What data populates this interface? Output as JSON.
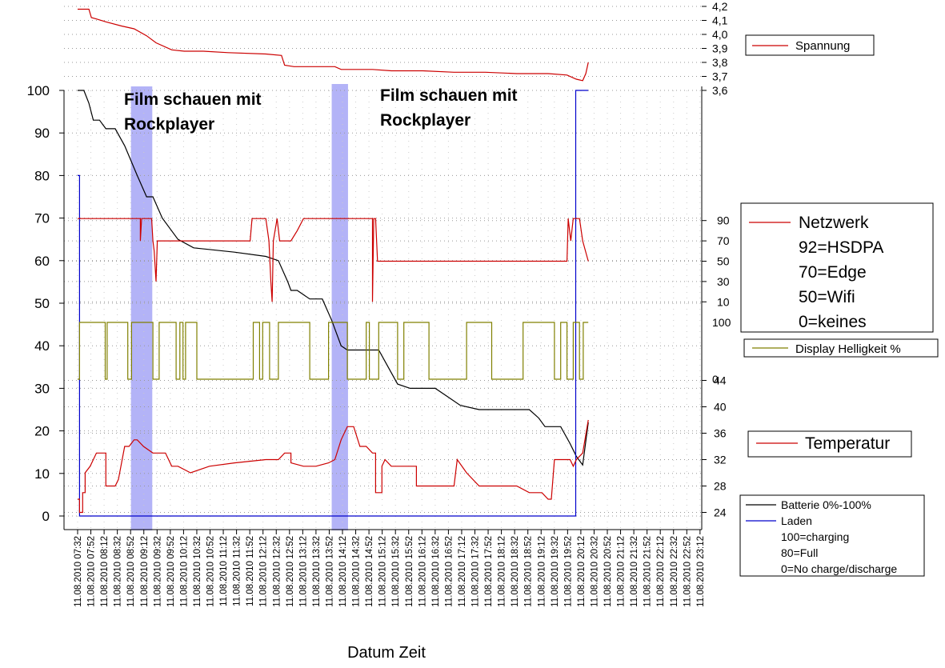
{
  "chart_data": {
    "type": "line",
    "xlabel": "Datum Zeit",
    "x_ticks": [
      "11.08.2010 07:32",
      "11.08.2010 07:52",
      "11.08.2010 08:12",
      "11.08.2010 08:32",
      "11.08.2010 08:52",
      "11.08.2010 09:12",
      "11.08.2010 09:32",
      "11.08.2010 09:52",
      "11.08.2010 10:12",
      "11.08.2010 10:32",
      "11.08.2010 10:52",
      "11.08.2010 11:12",
      "11.08.2010 11:32",
      "11.08.2010 11:52",
      "11.08.2010 12:12",
      "11.08.2010 12:32",
      "11.08.2010 12:52",
      "11.08.2010 13:12",
      "11.08.2010 13:32",
      "11.08.2010 13:52",
      "11.08.2010 14:12",
      "11.08.2010 14:32",
      "11.08.2010 14:52",
      "11.08.2010 15:12",
      "11.08.2010 15:32",
      "11.08.2010 15:52",
      "11.08.2010 16:12",
      "11.08.2010 16:32",
      "11.08.2010 16:52",
      "11.08.2010 17:12",
      "11.08.2010 17:32",
      "11.08.2010 17:52",
      "11.08.2010 18:12",
      "11.08.2010 18:32",
      "11.08.2010 18:52",
      "11.08.2010 19:12",
      "11.08.2010 19:32",
      "11.08.2010 19:52",
      "11.08.2010 20:12",
      "11.08.2010 20:32",
      "11.08.2010 20:52",
      "11.08.2010 21:12",
      "11.08.2010 21:32",
      "11.08.2010 21:52",
      "11.08.2010 22:12",
      "11.08.2010 22:32",
      "11.08.2010 22:52",
      "11.08.2010 23:12"
    ],
    "x_range_minutes_after_0732": [
      0,
      962
    ],
    "axes": {
      "main": {
        "ticks": [
          "0",
          "10",
          "20",
          "30",
          "40",
          "50",
          "60",
          "70",
          "80",
          "90",
          "100"
        ],
        "ylim": [
          0,
          100
        ]
      },
      "voltage": {
        "ticks": [
          "3,6",
          "3,7",
          "3,8",
          "3,9",
          "4,0",
          "4,1",
          "4,2"
        ],
        "ylim": [
          3.6,
          4.2
        ]
      },
      "network": {
        "ticks": [
          "10",
          "30",
          "50",
          "70",
          "90"
        ],
        "ylim": [
          0,
          100
        ]
      },
      "brightness": {
        "ticks": [
          "0",
          "100"
        ],
        "ylim": [
          0,
          100
        ]
      },
      "temperature": {
        "ticks": [
          "24",
          "28",
          "32",
          "36",
          "40",
          "44"
        ],
        "ylim": [
          22,
          46
        ]
      }
    },
    "annotations": [
      {
        "text": "Film schauen mit Rockplayer",
        "x_range": [
          85,
          119
        ]
      },
      {
        "text": "Film schauen mit Rockplayer",
        "x_range": [
          405,
          431
        ]
      }
    ],
    "series": [
      {
        "name": "Spannung",
        "color": "#cc0000",
        "axis": "voltage",
        "points": [
          [
            0,
            4.18
          ],
          [
            18,
            4.18
          ],
          [
            22,
            4.12
          ],
          [
            30,
            4.11
          ],
          [
            45,
            4.09
          ],
          [
            70,
            4.06
          ],
          [
            90,
            4.04
          ],
          [
            110,
            3.99
          ],
          [
            125,
            3.94
          ],
          [
            150,
            3.89
          ],
          [
            170,
            3.88
          ],
          [
            200,
            3.88
          ],
          [
            240,
            3.87
          ],
          [
            300,
            3.86
          ],
          [
            325,
            3.85
          ],
          [
            330,
            3.78
          ],
          [
            345,
            3.77
          ],
          [
            380,
            3.77
          ],
          [
            410,
            3.77
          ],
          [
            420,
            3.75
          ],
          [
            470,
            3.75
          ],
          [
            500,
            3.74
          ],
          [
            550,
            3.74
          ],
          [
            600,
            3.73
          ],
          [
            650,
            3.73
          ],
          [
            700,
            3.72
          ],
          [
            750,
            3.72
          ],
          [
            780,
            3.71
          ],
          [
            795,
            3.68
          ],
          [
            805,
            3.67
          ],
          [
            810,
            3.72
          ],
          [
            814,
            3.8
          ]
        ]
      },
      {
        "name": "Batterie 0%-100%",
        "color": "#000000",
        "axis": "main",
        "points": [
          [
            0,
            100
          ],
          [
            10,
            100
          ],
          [
            18,
            97
          ],
          [
            25,
            93
          ],
          [
            35,
            93
          ],
          [
            45,
            91
          ],
          [
            60,
            91
          ],
          [
            75,
            87
          ],
          [
            95,
            80
          ],
          [
            110,
            75
          ],
          [
            120,
            75
          ],
          [
            135,
            70
          ],
          [
            160,
            65
          ],
          [
            185,
            63
          ],
          [
            250,
            62
          ],
          [
            300,
            61
          ],
          [
            320,
            60
          ],
          [
            335,
            55
          ],
          [
            340,
            53
          ],
          [
            350,
            53
          ],
          [
            360,
            52
          ],
          [
            370,
            51
          ],
          [
            390,
            51
          ],
          [
            405,
            46
          ],
          [
            420,
            40
          ],
          [
            430,
            39
          ],
          [
            480,
            39
          ],
          [
            495,
            35
          ],
          [
            510,
            31
          ],
          [
            530,
            30
          ],
          [
            570,
            30
          ],
          [
            590,
            28
          ],
          [
            610,
            26
          ],
          [
            640,
            25
          ],
          [
            720,
            25
          ],
          [
            735,
            23
          ],
          [
            745,
            21
          ],
          [
            770,
            21
          ],
          [
            785,
            17
          ],
          [
            795,
            14
          ],
          [
            805,
            12
          ],
          [
            814,
            22
          ]
        ]
      },
      {
        "name": "Laden",
        "color": "#0000cc",
        "axis": "main",
        "points": [
          [
            0,
            80
          ],
          [
            3,
            80
          ],
          [
            3,
            0
          ],
          [
            700,
            0
          ],
          [
            780,
            0
          ],
          [
            794,
            0
          ],
          [
            794,
            100
          ],
          [
            814,
            100
          ]
        ]
      },
      {
        "name": "Netzwerk",
        "color": "#cc0000",
        "axis": "network",
        "notes": "92=HSDPA, 70=Edge, 50=Wifi, 0=keines",
        "points": [
          [
            0,
            92
          ],
          [
            100,
            92
          ],
          [
            100,
            70
          ],
          [
            102,
            92
          ],
          [
            118,
            92
          ],
          [
            120,
            70
          ],
          [
            122,
            60
          ],
          [
            125,
            30
          ],
          [
            127,
            70
          ],
          [
            135,
            70
          ],
          [
            140,
            70
          ],
          [
            150,
            70
          ],
          [
            190,
            70
          ],
          [
            260,
            70
          ],
          [
            275,
            70
          ],
          [
            278,
            92
          ],
          [
            300,
            92
          ],
          [
            305,
            70
          ],
          [
            308,
            30
          ],
          [
            310,
            10
          ],
          [
            312,
            70
          ],
          [
            318,
            92
          ],
          [
            322,
            70
          ],
          [
            340,
            70
          ],
          [
            350,
            80
          ],
          [
            360,
            92
          ],
          [
            440,
            92
          ],
          [
            445,
            92
          ],
          [
            450,
            92
          ],
          [
            470,
            92
          ],
          [
            470,
            10
          ],
          [
            472,
            92
          ],
          [
            475,
            92
          ],
          [
            478,
            50
          ],
          [
            780,
            50
          ],
          [
            782,
            92
          ],
          [
            786,
            70
          ],
          [
            790,
            92
          ],
          [
            800,
            92
          ],
          [
            805,
            70
          ],
          [
            814,
            50
          ]
        ]
      },
      {
        "name": "Display Helligkeit %",
        "color": "#808000",
        "axis": "brightness",
        "step_between": [
          0,
          100
        ],
        "points": [
          [
            0,
            0
          ],
          [
            3,
            0
          ],
          [
            3,
            100
          ],
          [
            44,
            100
          ],
          [
            44,
            0
          ],
          [
            47,
            0
          ],
          [
            47,
            100
          ],
          [
            80,
            100
          ],
          [
            80,
            0
          ],
          [
            86,
            0
          ],
          [
            86,
            100
          ],
          [
            120,
            100
          ],
          [
            120,
            0
          ],
          [
            130,
            0
          ],
          [
            130,
            100
          ],
          [
            157,
            100
          ],
          [
            157,
            0
          ],
          [
            163,
            0
          ],
          [
            163,
            100
          ],
          [
            168,
            100
          ],
          [
            168,
            0
          ],
          [
            172,
            0
          ],
          [
            172,
            100
          ],
          [
            190,
            100
          ],
          [
            190,
            0
          ],
          [
            280,
            0
          ],
          [
            280,
            100
          ],
          [
            290,
            100
          ],
          [
            290,
            0
          ],
          [
            295,
            0
          ],
          [
            295,
            100
          ],
          [
            306,
            100
          ],
          [
            306,
            0
          ],
          [
            320,
            0
          ],
          [
            320,
            100
          ],
          [
            370,
            100
          ],
          [
            370,
            0
          ],
          [
            400,
            0
          ],
          [
            400,
            100
          ],
          [
            430,
            100
          ],
          [
            430,
            0
          ],
          [
            460,
            0
          ],
          [
            460,
            100
          ],
          [
            465,
            100
          ],
          [
            465,
            0
          ],
          [
            480,
            0
          ],
          [
            480,
            100
          ],
          [
            510,
            100
          ],
          [
            510,
            0
          ],
          [
            520,
            0
          ],
          [
            520,
            100
          ],
          [
            560,
            100
          ],
          [
            560,
            0
          ],
          [
            620,
            0
          ],
          [
            620,
            100
          ],
          [
            660,
            100
          ],
          [
            660,
            0
          ],
          [
            710,
            0
          ],
          [
            710,
            100
          ],
          [
            760,
            100
          ],
          [
            760,
            0
          ],
          [
            770,
            0
          ],
          [
            770,
            100
          ],
          [
            780,
            100
          ],
          [
            780,
            0
          ],
          [
            790,
            0
          ],
          [
            790,
            100
          ],
          [
            800,
            100
          ],
          [
            800,
            0
          ],
          [
            806,
            0
          ],
          [
            806,
            100
          ],
          [
            814,
            100
          ]
        ]
      },
      {
        "name": "Temperatur",
        "color": "#cc0000",
        "axis": "temperature",
        "points": [
          [
            0,
            26
          ],
          [
            3,
            26
          ],
          [
            3,
            24
          ],
          [
            8,
            24
          ],
          [
            8,
            27
          ],
          [
            12,
            27
          ],
          [
            12,
            30
          ],
          [
            20,
            31
          ],
          [
            30,
            33
          ],
          [
            45,
            33
          ],
          [
            45,
            28
          ],
          [
            60,
            28
          ],
          [
            65,
            29
          ],
          [
            75,
            34
          ],
          [
            82,
            34
          ],
          [
            90,
            35
          ],
          [
            95,
            35
          ],
          [
            105,
            34
          ],
          [
            120,
            33
          ],
          [
            140,
            33
          ],
          [
            145,
            32
          ],
          [
            150,
            31
          ],
          [
            160,
            31
          ],
          [
            180,
            30
          ],
          [
            210,
            31
          ],
          [
            250,
            31.5
          ],
          [
            300,
            32
          ],
          [
            320,
            32
          ],
          [
            330,
            33
          ],
          [
            340,
            33
          ],
          [
            340,
            31.5
          ],
          [
            360,
            31
          ],
          [
            380,
            31
          ],
          [
            400,
            31.5
          ],
          [
            410,
            32
          ],
          [
            420,
            35
          ],
          [
            430,
            37
          ],
          [
            440,
            37
          ],
          [
            450,
            34
          ],
          [
            460,
            34
          ],
          [
            470,
            33
          ],
          [
            475,
            33
          ],
          [
            475,
            27
          ],
          [
            485,
            27
          ],
          [
            485,
            31
          ],
          [
            490,
            32
          ],
          [
            500,
            31
          ],
          [
            540,
            31
          ],
          [
            540,
            28
          ],
          [
            560,
            28
          ],
          [
            600,
            28
          ],
          [
            605,
            32
          ],
          [
            620,
            30
          ],
          [
            640,
            28
          ],
          [
            700,
            28
          ],
          [
            720,
            27
          ],
          [
            740,
            27
          ],
          [
            750,
            26
          ],
          [
            755,
            26
          ],
          [
            760,
            32
          ],
          [
            785,
            32
          ],
          [
            790,
            31
          ],
          [
            795,
            32
          ],
          [
            805,
            33
          ],
          [
            814,
            38
          ]
        ]
      }
    ]
  },
  "legends": {
    "spannung": "Spannung",
    "netzwerk": [
      "Netzwerk",
      "92=HSDPA",
      "70=Edge",
      "50=Wifi",
      "0=keines"
    ],
    "helligkeit": "Display Helligkeit %",
    "temperatur": "Temperatur",
    "batterie": [
      "Batterie 0%-100%",
      "Laden",
      "100=charging",
      "80=Full",
      "0=No charge/discharge"
    ]
  },
  "annotation_lines": [
    [
      "Film schauen mit",
      "Rockplayer"
    ],
    [
      "Film schauen mit",
      "Rockplayer"
    ]
  ]
}
